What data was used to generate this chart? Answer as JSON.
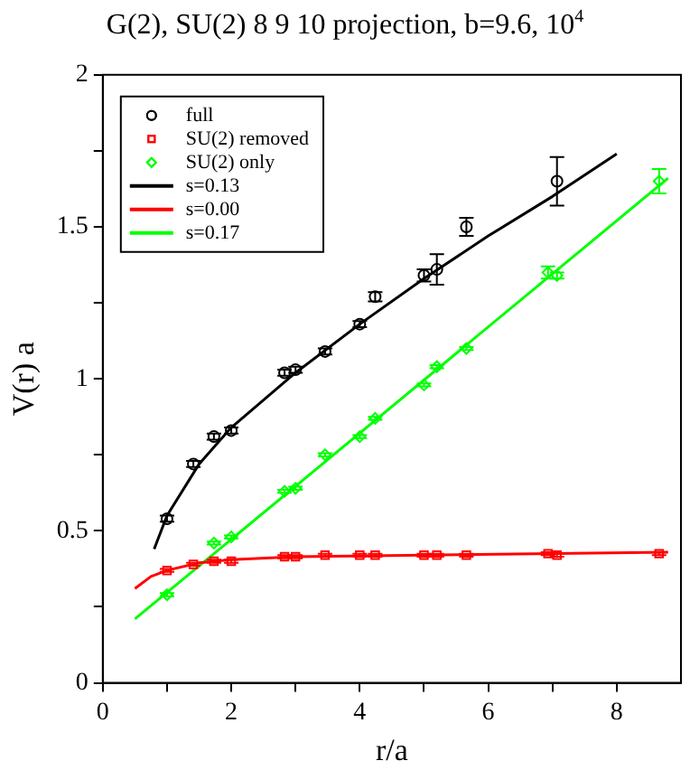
{
  "chart_data": {
    "type": "scatter",
    "title": "G(2), SU(2) 8 9 10 projection, b=9.6, 10$^{4}$",
    "xlabel": "r/a",
    "ylabel": "V(r) a",
    "xlim": [
      0,
      9
    ],
    "xticks": [
      0,
      {
        "value": 1,
        "label": null
      },
      2,
      {
        "value": 3,
        "label": null
      },
      4,
      {
        "value": 5,
        "label": null
      },
      6,
      {
        "value": 7,
        "label": null
      },
      8
    ],
    "ylim": [
      0,
      2
    ],
    "yticks": [
      0,
      {
        "value": 0.25,
        "label": null
      },
      0.5,
      {
        "value": 0.75,
        "label": null
      },
      1,
      {
        "value": 1.25,
        "label": null
      },
      1.5,
      {
        "value": 1.75,
        "label": null
      },
      2
    ],
    "grid": false,
    "legend": "top left",
    "series": [
      {
        "name": "full",
        "type": "scatter",
        "marker": "circle",
        "color": "#000000",
        "x": [
          1,
          1.41,
          1.73,
          2,
          2.83,
          3,
          3.46,
          4,
          4.24,
          5,
          5.2,
          5.66,
          7.07
        ],
        "values": [
          0.54,
          0.72,
          0.81,
          0.83,
          1.02,
          1.03,
          1.09,
          1.18,
          1.27,
          1.34,
          1.36,
          1.5,
          1.65
        ],
        "errors": [
          0.01,
          0.01,
          0.01,
          0.01,
          0.01,
          0.01,
          0.01,
          0.01,
          0.015,
          0.02,
          0.05,
          0.03,
          0.08
        ]
      },
      {
        "name": "SU(2) removed",
        "type": "scatter",
        "marker": "square",
        "color": "#ff0000",
        "x": [
          1,
          1.41,
          1.73,
          2,
          2.83,
          3,
          3.46,
          4,
          4.24,
          5,
          5.2,
          5.66,
          6.93,
          7.07,
          8.66
        ],
        "values": [
          0.37,
          0.39,
          0.4,
          0.4,
          0.415,
          0.415,
          0.42,
          0.42,
          0.42,
          0.42,
          0.42,
          0.42,
          0.425,
          0.42,
          0.425
        ],
        "errors": [
          0.005,
          0.005,
          0.005,
          0.005,
          0.005,
          0.005,
          0.005,
          0.005,
          0.005,
          0.005,
          0.005,
          0.005,
          0.005,
          0.005,
          0.005
        ]
      },
      {
        "name": "SU(2) only",
        "type": "scatter",
        "marker": "diamond",
        "color": "#00ff00",
        "x": [
          1,
          1.73,
          2,
          2.83,
          3,
          3.46,
          4,
          4.24,
          5,
          5.2,
          5.66,
          6.93,
          7.07,
          8.66
        ],
        "values": [
          0.29,
          0.46,
          0.48,
          0.63,
          0.64,
          0.75,
          0.81,
          0.87,
          0.98,
          1.04,
          1.1,
          1.35,
          1.34,
          1.65
        ],
        "errors": [
          0.005,
          0.005,
          0.005,
          0.005,
          0.005,
          0.005,
          0.005,
          0.005,
          0.005,
          0.005,
          0.005,
          0.02,
          0.01,
          0.04
        ]
      },
      {
        "name": "s=0.13",
        "type": "line",
        "marker": "none",
        "color": "#000000",
        "x": [
          0.8,
          1,
          1.5,
          2,
          3,
          4,
          5,
          6,
          7,
          8
        ],
        "values": [
          0.44,
          0.55,
          0.72,
          0.84,
          1.02,
          1.18,
          1.33,
          1.47,
          1.6,
          1.74
        ]
      },
      {
        "name": "s=0.00",
        "type": "line",
        "marker": "none",
        "color": "#ff0000",
        "x": [
          0.5,
          0.75,
          1,
          1.5,
          2,
          3,
          5,
          8.8
        ],
        "values": [
          0.31,
          0.35,
          0.37,
          0.395,
          0.405,
          0.415,
          0.42,
          0.43
        ]
      },
      {
        "name": "s=0.17",
        "type": "line",
        "marker": "none",
        "color": "#00ff00",
        "x": [
          0.5,
          8.8
        ],
        "values": [
          0.21,
          1.66
        ]
      }
    ]
  }
}
